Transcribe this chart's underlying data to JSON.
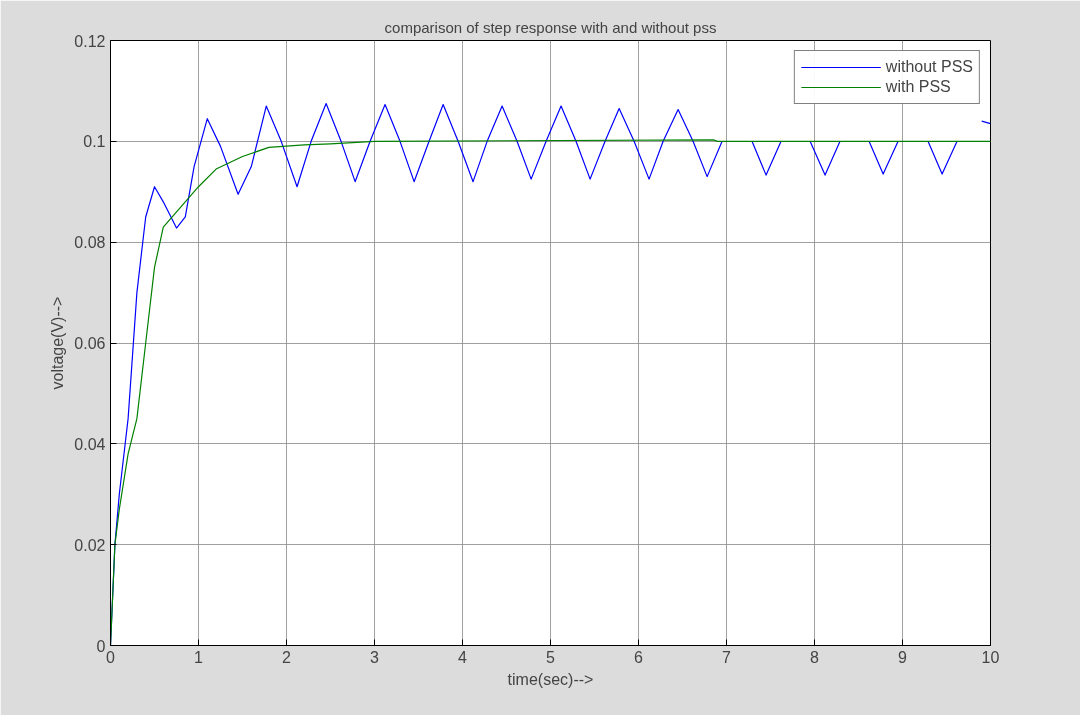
{
  "chart_data": {
    "type": "line",
    "title": "comparison of step response with and without pss",
    "xlabel": "time(sec)-->",
    "ylabel": "voltage(V)-->",
    "xlim": [
      0,
      10
    ],
    "ylim": [
      0,
      0.12
    ],
    "xticks": [
      0,
      1,
      2,
      3,
      4,
      5,
      6,
      7,
      8,
      9,
      10
    ],
    "yticks": [
      0,
      0.02,
      0.04,
      0.06,
      0.08,
      0.1,
      0.12
    ],
    "grid": true,
    "legend": "top right",
    "line_style": "solid",
    "marker": "none",
    "series": [
      {
        "name": "without PSS",
        "color": "#0000ff",
        "x": [
          0,
          0.05,
          0.1,
          0.2,
          0.3,
          0.4,
          0.5,
          0.6,
          0.75,
          0.85,
          0.95,
          1.1,
          1.25,
          1.45,
          1.6,
          1.77,
          1.94,
          2.12,
          2.28,
          2.45,
          2.62,
          2.78,
          2.95,
          3.12,
          3.29,
          3.45,
          3.62,
          3.78,
          3.95,
          4.12,
          4.28,
          4.45,
          4.62,
          4.78,
          4.95,
          5.12,
          5.29,
          5.45,
          5.62,
          5.78,
          5.95,
          6.12,
          6.28,
          6.45,
          6.62,
          6.78,
          6.95,
          7.12,
          7.29,
          7.45,
          7.62,
          7.78,
          7.95,
          8.12,
          8.29,
          8.45,
          8.62,
          8.78,
          8.95,
          9.12,
          9.29,
          9.45,
          9.62,
          9.78,
          9.9,
          10
        ],
        "values": [
          0,
          0.02,
          0.03,
          0.045,
          0.07,
          0.085,
          0.091,
          0.088,
          0.0828,
          0.085,
          0.095,
          0.1045,
          0.099,
          0.0895,
          0.095,
          0.107,
          0.1,
          0.091,
          0.1,
          0.1075,
          0.1,
          0.092,
          0.1,
          0.1073,
          0.1,
          0.092,
          0.1,
          0.1073,
          0.1,
          0.092,
          0.1,
          0.107,
          0.1,
          0.0925,
          0.1,
          0.107,
          0.1,
          0.0925,
          0.1,
          0.1065,
          0.1,
          0.0925,
          0.1,
          0.1063,
          0.1,
          0.093,
          0.1,
          null,
          0.1,
          0.0933,
          0.1,
          null,
          0.1,
          0.0933,
          0.1,
          null,
          0.1,
          0.0935,
          0.1,
          null,
          0.1,
          0.0935,
          0.1,
          null,
          0.104,
          0.1035
        ]
      },
      {
        "name": "with PSS",
        "color": "#008000",
        "x": [
          0,
          0.05,
          0.1,
          0.2,
          0.3,
          0.4,
          0.5,
          0.6,
          0.8,
          1.0,
          1.2,
          1.5,
          1.8,
          2.2,
          2.5,
          3.0,
          6.85,
          6.9,
          10
        ],
        "values": [
          0,
          0.02,
          0.027,
          0.038,
          0.045,
          0.06,
          0.075,
          0.083,
          0.087,
          0.091,
          0.0945,
          0.097,
          0.0988,
          0.0993,
          0.0995,
          0.1,
          0.1003,
          0.1,
          0.1
        ]
      }
    ]
  }
}
